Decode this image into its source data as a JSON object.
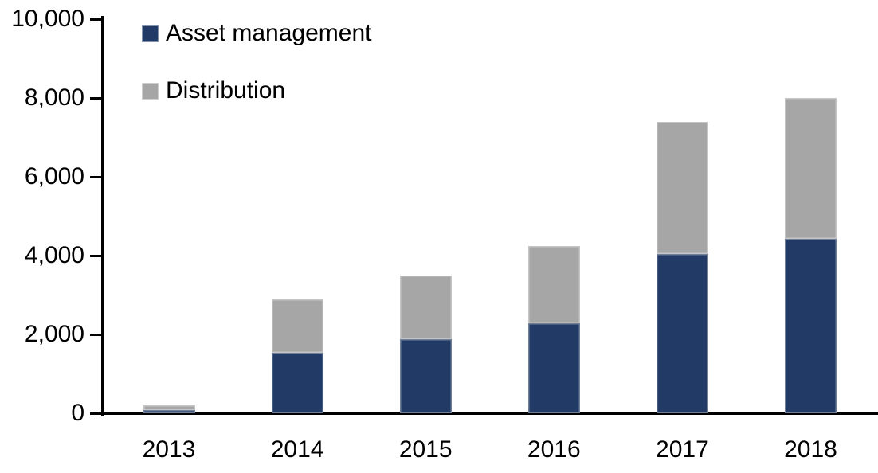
{
  "chart_data": {
    "type": "bar",
    "stacked": true,
    "title": "",
    "xlabel": "",
    "ylabel": "",
    "categories": [
      "2013",
      "2014",
      "2015",
      "2016",
      "2017",
      "2018"
    ],
    "series": [
      {
        "name": "Asset management",
        "color": "#213A66",
        "values": [
          80,
          1530,
          1880,
          2280,
          4050,
          4420
        ]
      },
      {
        "name": "Distribution",
        "color": "#A6A6A6",
        "values": [
          120,
          1350,
          1620,
          1970,
          3350,
          3580
        ]
      }
    ],
    "totals": [
      200,
      2880,
      3500,
      4250,
      7400,
      8000
    ],
    "ylim": [
      0,
      10000
    ],
    "yticks": [
      0,
      2000,
      4000,
      6000,
      8000,
      10000
    ],
    "ytick_labels": [
      "0",
      "2,000",
      "4,000",
      "6,000",
      "8,000",
      "10,000"
    ],
    "grid": false,
    "legend_position": "top-left",
    "axis_color": "#000000",
    "background_color": "#FFFFFF"
  }
}
